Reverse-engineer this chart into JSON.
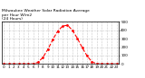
{
  "title": "Milwaukee Weather Solar Radiation Average\nper Hour W/m2\n(24 Hours)",
  "title_fontsize": 3.2,
  "hours": [
    0,
    1,
    2,
    3,
    4,
    5,
    6,
    7,
    8,
    9,
    10,
    11,
    12,
    13,
    14,
    15,
    16,
    17,
    18,
    19,
    20,
    21,
    22,
    23
  ],
  "solar_values": [
    0,
    0,
    0,
    0,
    0,
    0,
    2,
    20,
    80,
    175,
    290,
    390,
    450,
    460,
    400,
    305,
    195,
    95,
    25,
    3,
    0,
    0,
    0,
    0
  ],
  "line_color": "#ff0000",
  "line_style": "--",
  "line_width": 0.8,
  "marker": ".",
  "marker_size": 2.0,
  "grid_color": "#999999",
  "grid_style": ":",
  "grid_linewidth": 0.4,
  "bg_color": "#ffffff",
  "ylim": [
    0,
    500
  ],
  "xlim": [
    -0.5,
    23.5
  ],
  "tick_fontsize": 3.0,
  "ytick_values": [
    0,
    100,
    200,
    300,
    400,
    500
  ],
  "xtick_values": [
    0,
    1,
    2,
    3,
    4,
    5,
    6,
    7,
    8,
    9,
    10,
    11,
    12,
    13,
    14,
    15,
    16,
    17,
    18,
    19,
    20,
    21,
    22,
    23
  ],
  "spine_linewidth": 0.5
}
